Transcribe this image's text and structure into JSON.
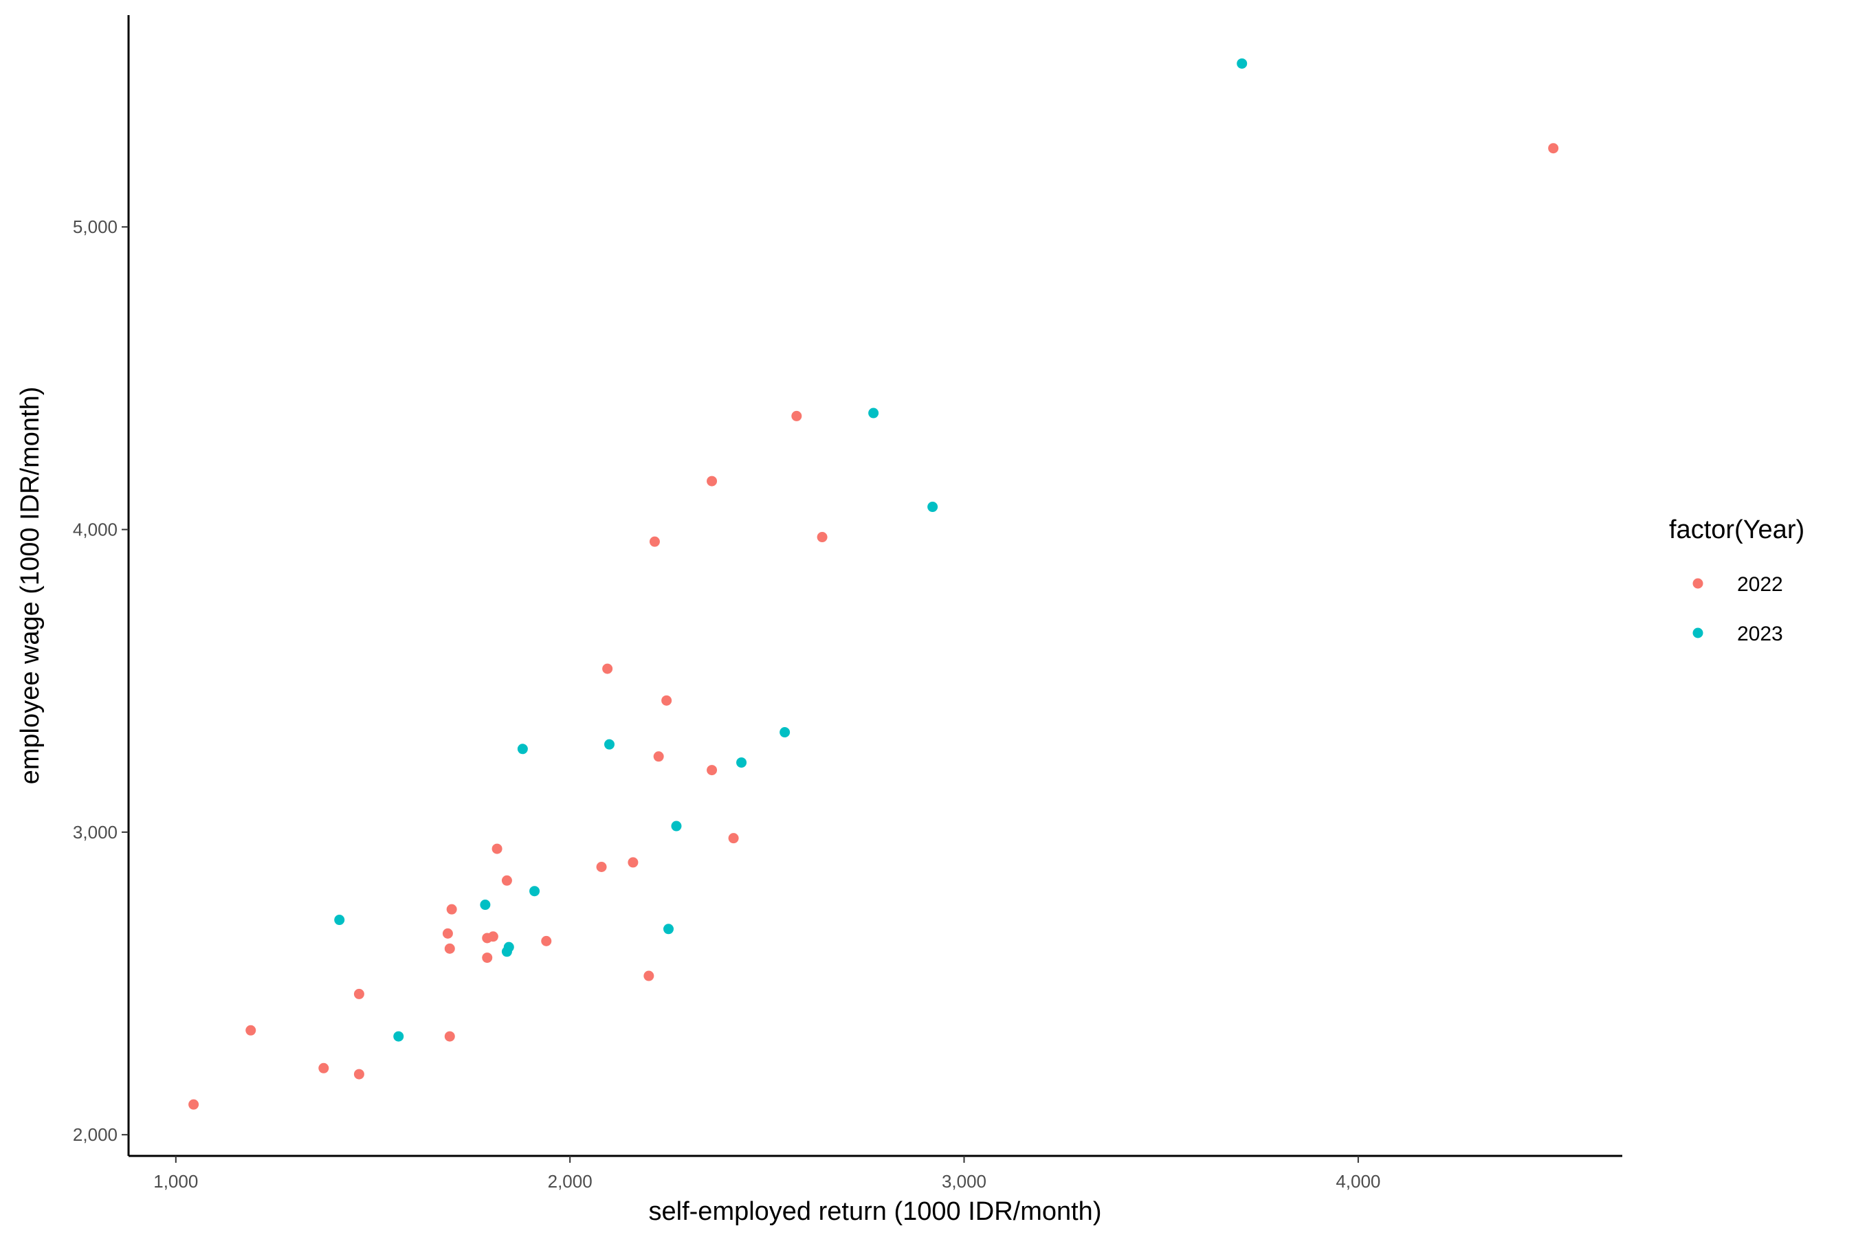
{
  "chart_data": {
    "type": "scatter",
    "title": "",
    "xlabel": "self-employed return (1000 IDR/month)",
    "ylabel": "employee wage (1000 IDR/month)",
    "xlim": [
      880,
      4670
    ],
    "ylim": [
      1930,
      5700
    ],
    "x_ticks": [
      1000,
      2000,
      3000,
      4000
    ],
    "y_ticks": [
      2000,
      3000,
      4000,
      5000
    ],
    "x_tick_labels": [
      "1,000",
      "2,000",
      "3,000",
      "4,000"
    ],
    "y_tick_labels": [
      "2,000",
      "3,000",
      "4,000",
      "5,000"
    ],
    "grid": false,
    "legend": {
      "title": "factor(Year)",
      "position": "right"
    },
    "series": [
      {
        "name": "2022",
        "color": "#F8766D",
        "points": [
          {
            "x": 1045,
            "y": 2100
          },
          {
            "x": 1190,
            "y": 2345
          },
          {
            "x": 1375,
            "y": 2220
          },
          {
            "x": 1465,
            "y": 2200
          },
          {
            "x": 1465,
            "y": 2465
          },
          {
            "x": 1690,
            "y": 2665
          },
          {
            "x": 1695,
            "y": 2615
          },
          {
            "x": 1700,
            "y": 2745
          },
          {
            "x": 1695,
            "y": 2325
          },
          {
            "x": 1790,
            "y": 2650
          },
          {
            "x": 1805,
            "y": 2655
          },
          {
            "x": 1790,
            "y": 2585
          },
          {
            "x": 1815,
            "y": 2945
          },
          {
            "x": 1840,
            "y": 2840
          },
          {
            "x": 1940,
            "y": 2640
          },
          {
            "x": 2080,
            "y": 2885
          },
          {
            "x": 2095,
            "y": 3540
          },
          {
            "x": 2160,
            "y": 2900
          },
          {
            "x": 2200,
            "y": 2525
          },
          {
            "x": 2215,
            "y": 3960
          },
          {
            "x": 2225,
            "y": 3250
          },
          {
            "x": 2245,
            "y": 3435
          },
          {
            "x": 2360,
            "y": 4160
          },
          {
            "x": 2360,
            "y": 3205
          },
          {
            "x": 2415,
            "y": 2980
          },
          {
            "x": 2575,
            "y": 4375
          },
          {
            "x": 2640,
            "y": 3975
          },
          {
            "x": 4495,
            "y": 5260
          }
        ]
      },
      {
        "name": "2023",
        "color": "#00BFC4",
        "points": [
          {
            "x": 1415,
            "y": 2710
          },
          {
            "x": 1565,
            "y": 2325
          },
          {
            "x": 1785,
            "y": 2760
          },
          {
            "x": 1840,
            "y": 2605
          },
          {
            "x": 1845,
            "y": 2620
          },
          {
            "x": 1880,
            "y": 3275
          },
          {
            "x": 1910,
            "y": 2805
          },
          {
            "x": 2100,
            "y": 3290
          },
          {
            "x": 2250,
            "y": 2680
          },
          {
            "x": 2270,
            "y": 3020
          },
          {
            "x": 2435,
            "y": 3230
          },
          {
            "x": 2545,
            "y": 3330
          },
          {
            "x": 2770,
            "y": 4385
          },
          {
            "x": 2920,
            "y": 4075
          },
          {
            "x": 3705,
            "y": 5540
          }
        ]
      }
    ]
  }
}
